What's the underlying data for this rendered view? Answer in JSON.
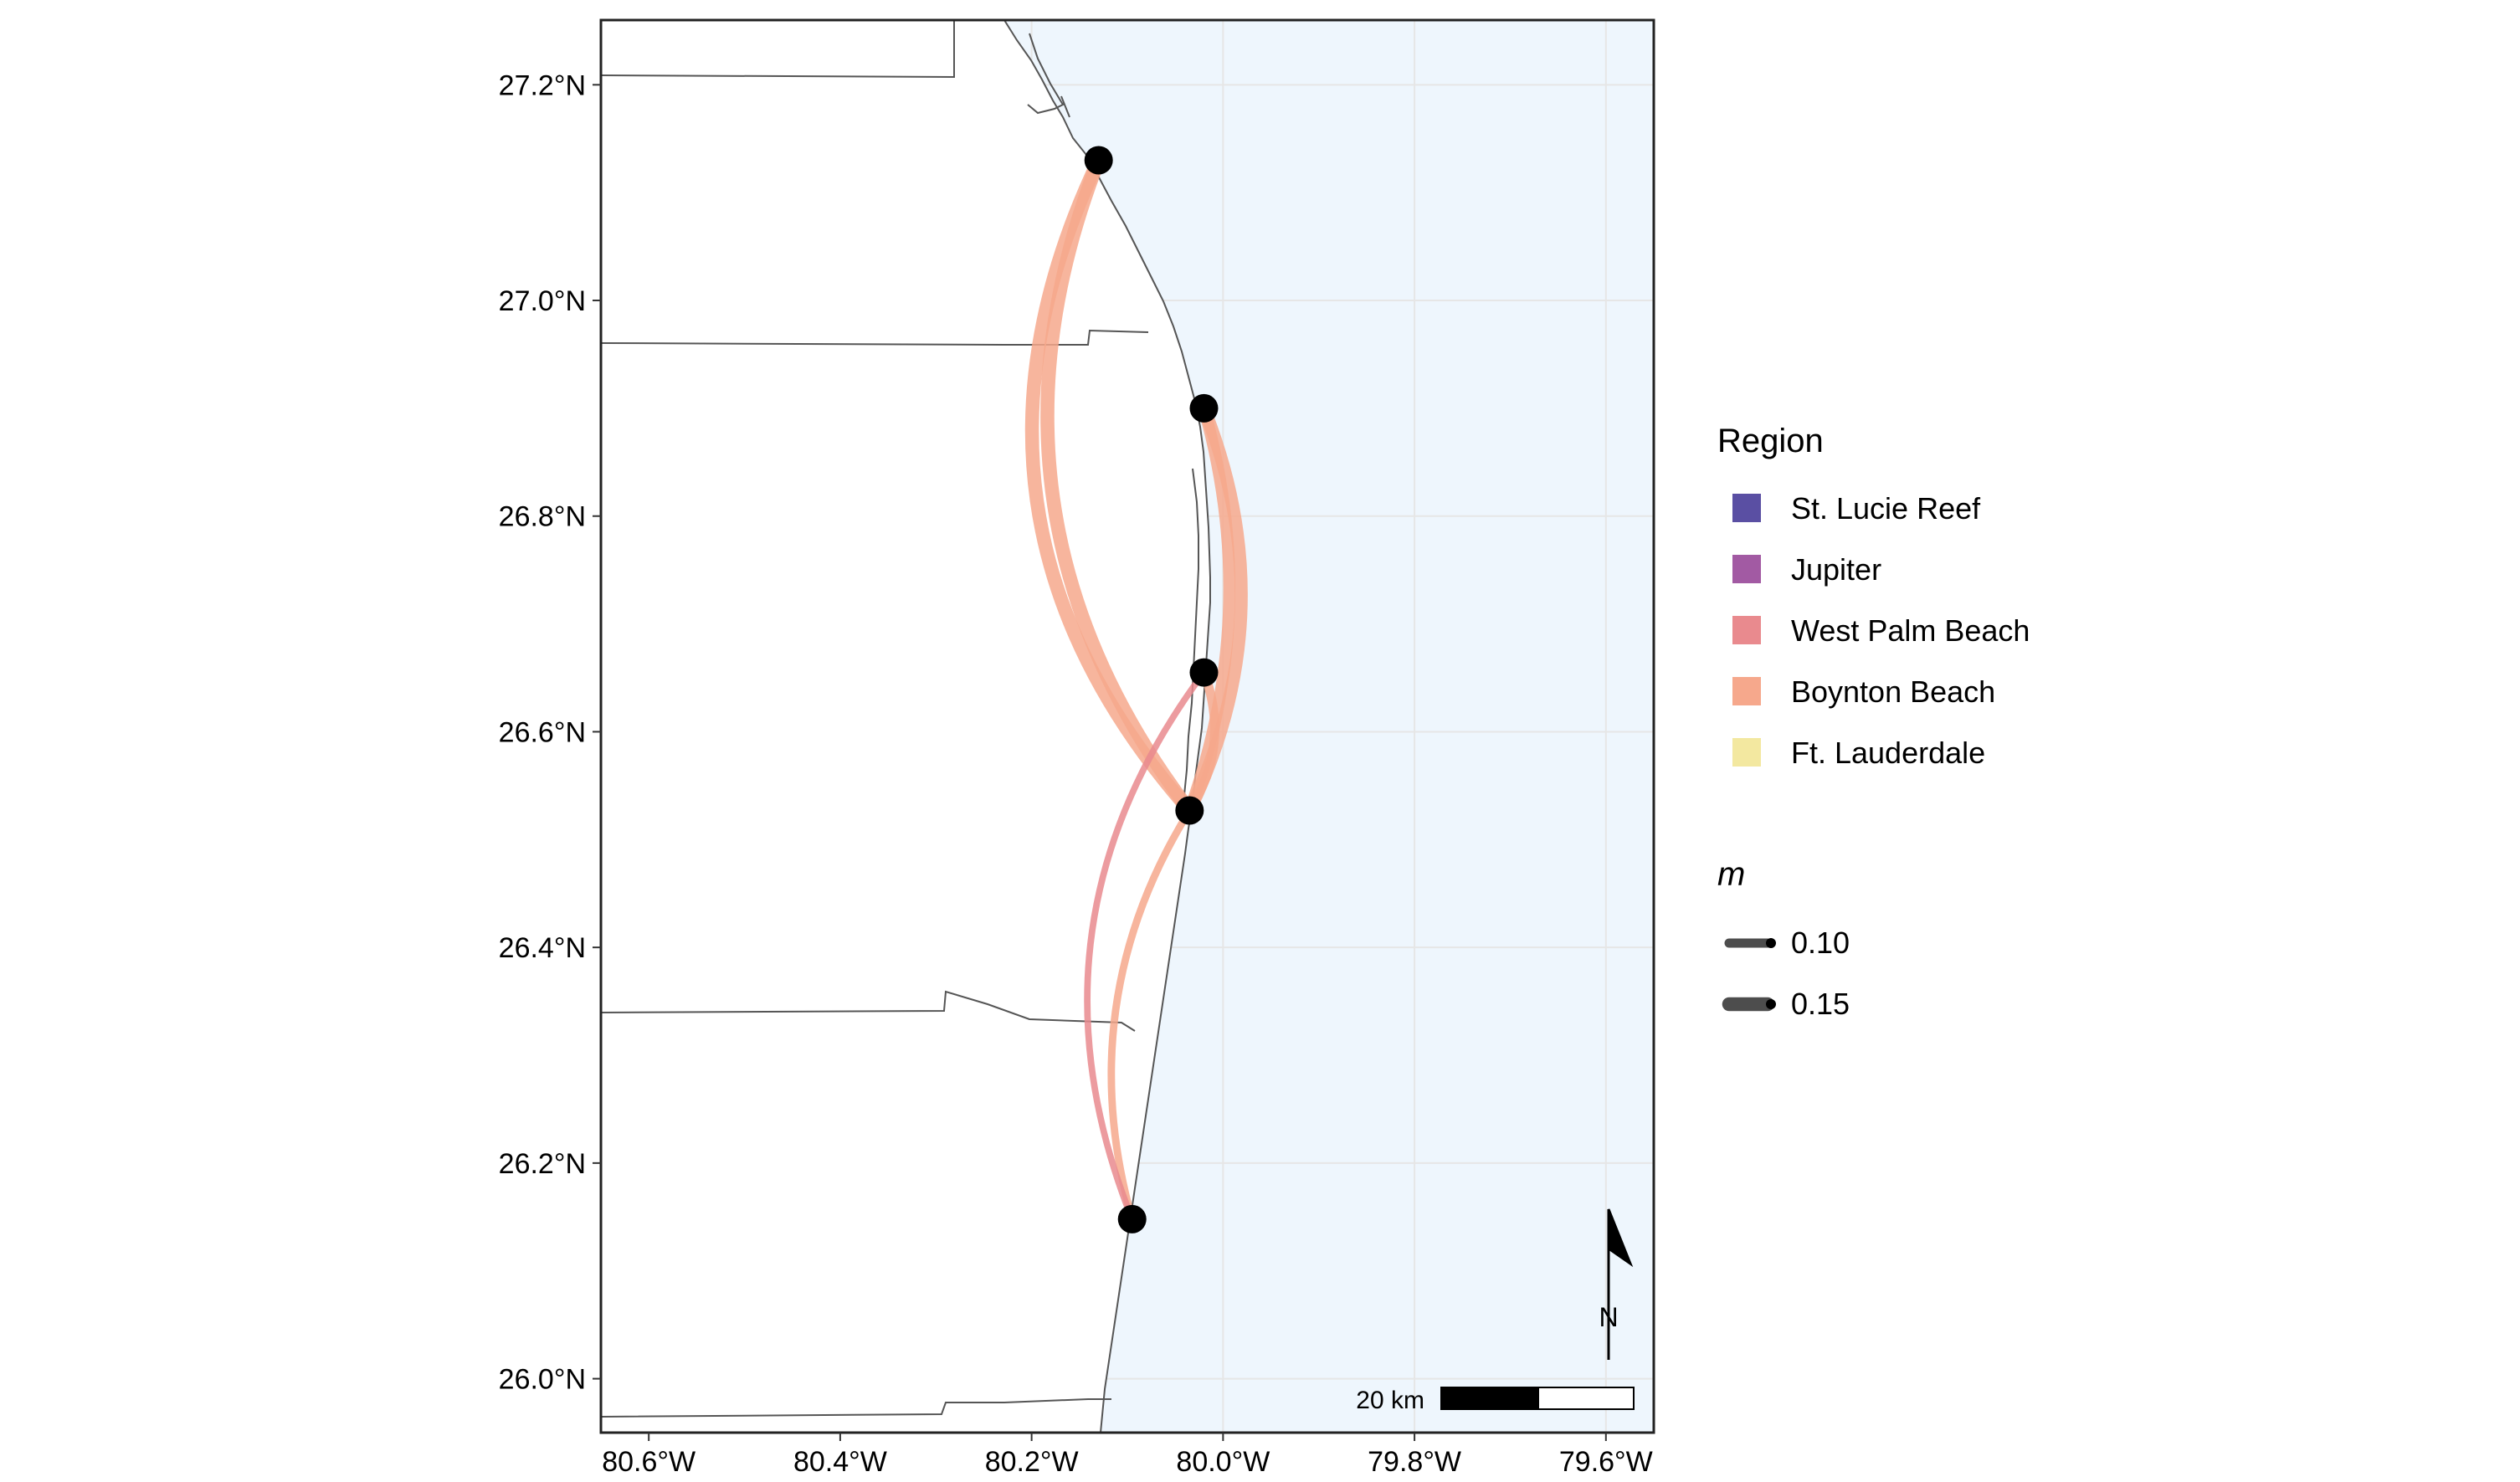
{
  "map": {
    "x_ticks": [
      {
        "lon": -80.6,
        "label": "80.6°W"
      },
      {
        "lon": -80.4,
        "label": "80.4°W"
      },
      {
        "lon": -80.2,
        "label": "80.2°W"
      },
      {
        "lon": -80.0,
        "label": "80.0°W"
      },
      {
        "lon": -79.8,
        "label": "79.8°W"
      },
      {
        "lon": -79.6,
        "label": "79.6°W"
      }
    ],
    "y_ticks": [
      {
        "lat": 27.2,
        "label": "27.2°N"
      },
      {
        "lat": 27.0,
        "label": "27.0°N"
      },
      {
        "lat": 26.8,
        "label": "26.8°N"
      },
      {
        "lat": 26.6,
        "label": "26.6°N"
      },
      {
        "lat": 26.4,
        "label": "26.4°N"
      },
      {
        "lat": 26.2,
        "label": "26.2°N"
      },
      {
        "lat": 26.0,
        "label": "26.0°N"
      }
    ],
    "lon_range": [
      -80.65,
      -79.55
    ],
    "lat_range": [
      25.95,
      27.26
    ],
    "ocean_color": "#eef6fd",
    "land_color": "#ffffff",
    "grid": true,
    "sites": [
      {
        "lon": -80.13,
        "lat": 27.13
      },
      {
        "lon": -80.02,
        "lat": 26.9
      },
      {
        "lon": -80.02,
        "lat": 26.655
      },
      {
        "lon": -80.035,
        "lat": 26.527
      },
      {
        "lon": -80.095,
        "lat": 26.148
      }
    ],
    "connections": [
      {
        "from": 3,
        "to": 0,
        "bulge": -0.33,
        "m": 0.15,
        "color": "#f6a88c"
      },
      {
        "from": 3,
        "to": 0,
        "bulge": -0.28,
        "m": 0.15,
        "color": "#f6a88c"
      },
      {
        "from": 3,
        "to": 1,
        "bulge": 0.22,
        "m": 0.14,
        "color": "#f6a88c"
      },
      {
        "from": 3,
        "to": 1,
        "bulge": 0.16,
        "m": 0.13,
        "color": "#f6a88c"
      },
      {
        "from": 3,
        "to": 2,
        "bulge": 0.25,
        "m": 0.1,
        "color": "#f6a88c"
      },
      {
        "from": 3,
        "to": 4,
        "bulge": 0.22,
        "m": 0.08,
        "color": "#f6a88c"
      },
      {
        "from": 2,
        "to": 4,
        "bulge": 0.28,
        "m": 0.07,
        "color": "#e98a8e"
      }
    ],
    "scale_bar_label": "20 km",
    "north_label": "N"
  },
  "legend": {
    "region_title": "Region",
    "regions": [
      {
        "name": "St. Lucie Reef",
        "color": "#5a4fa3"
      },
      {
        "name": "Jupiter",
        "color": "#a25aa3"
      },
      {
        "name": "West Palm Beach",
        "color": "#e98a8e"
      },
      {
        "name": "Boynton Beach",
        "color": "#f6a88c"
      },
      {
        "name": "Ft. Lauderdale",
        "color": "#f3e8a0"
      }
    ],
    "m_title": "m",
    "m_entries": [
      {
        "label": "0.10",
        "value": 0.1
      },
      {
        "label": "0.15",
        "value": 0.15
      }
    ]
  }
}
